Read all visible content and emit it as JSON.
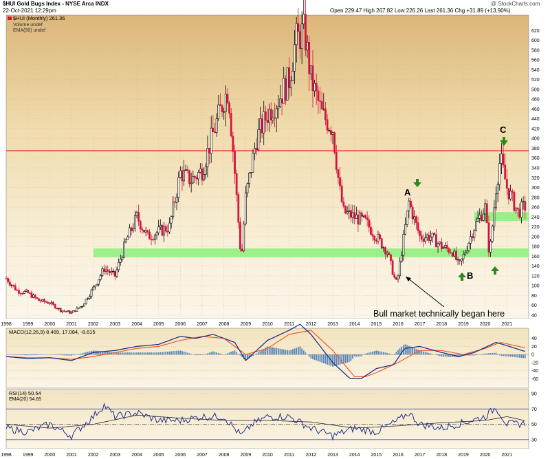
{
  "header": {
    "ticker_title": "$HUI Gold Bugs Index - NYSE Arca INDX",
    "date": "22-Oct-2021 12:29pm",
    "quote": "Open 229.47  High 267.82  Low 226.26  Last 261.36  Chg +31.89 (+13.90%)",
    "watermark": "@ StockCharts.com"
  },
  "legend": {
    "main": "$HUI (Monthly) 261.36",
    "volume": "Volume undef",
    "ema": "EMA(50) undef",
    "macd": "MACD(12,26,9) 8.469, 17.084, -8.615",
    "rsi": "RSI(14) 50.54",
    "rsi_ema": "EMA(20) 54.65"
  },
  "annotations": {
    "a": "A",
    "b": "B",
    "c": "C",
    "note": "Bull market technically began here"
  },
  "colors": {
    "up_bar": "#000000",
    "down_bar": "#d4143c",
    "resistance": "#e53030",
    "support_zone": "#8cf07a",
    "macd_line": "#1f2f8c",
    "signal_line": "#f05a28",
    "histogram": "#5a86b8",
    "arrow": "#2b8a1a"
  },
  "chart_data": [
    {
      "type": "line",
      "title": "$HUI (Monthly)",
      "x": [
        1998.0,
        1998.5,
        1999.0,
        1999.5,
        2000.0,
        2000.5,
        2001.0,
        2001.5,
        2002.0,
        2002.5,
        2003.0,
        2003.5,
        2004.0,
        2004.5,
        2005.0,
        2005.5,
        2006.0,
        2006.5,
        2007.0,
        2007.5,
        2008.0,
        2008.2,
        2008.5,
        2008.8,
        2009.0,
        2009.5,
        2010.0,
        2010.5,
        2011.0,
        2011.3,
        2011.7,
        2012.0,
        2012.5,
        2013.0,
        2013.3,
        2013.5,
        2014.0,
        2014.5,
        2015.0,
        2015.5,
        2015.9,
        2016.0,
        2016.5,
        2017.0,
        2017.5,
        2018.0,
        2018.5,
        2018.8,
        2019.0,
        2019.5,
        2020.0,
        2020.2,
        2020.5,
        2020.7,
        2021.0,
        2021.5,
        2021.8
      ],
      "values": [
        115,
        90,
        85,
        70,
        65,
        50,
        45,
        60,
        95,
        135,
        120,
        190,
        240,
        200,
        210,
        220,
        330,
        315,
        335,
        410,
        480,
        500,
        330,
        150,
        280,
        400,
        450,
        480,
        520,
        600,
        620,
        520,
        450,
        420,
        300,
        250,
        240,
        230,
        200,
        170,
        105,
        120,
        270,
        200,
        200,
        180,
        170,
        140,
        160,
        220,
        260,
        160,
        300,
        360,
        300,
        250,
        261
      ],
      "xlabel": "",
      "ylabel": "",
      "ylim": [
        40,
        640
      ],
      "x_ticks": [
        "1998",
        "1999",
        "2000",
        "2001",
        "2002",
        "2003",
        "2004",
        "2005",
        "2006",
        "2007",
        "2008",
        "2009",
        "2010",
        "2011",
        "2012",
        "2013",
        "2014",
        "2015",
        "2016",
        "2017",
        "2018",
        "2019",
        "2020",
        "2021"
      ],
      "y_ticks": [
        40,
        60,
        80,
        100,
        120,
        140,
        160,
        180,
        200,
        220,
        240,
        260,
        280,
        300,
        320,
        340,
        360,
        380,
        400,
        420,
        440,
        460,
        480,
        500,
        520,
        540,
        560,
        580,
        600,
        620
      ],
      "resistance_level": 375,
      "support_zones": [
        [
          158,
          176
        ],
        [
          232,
          250
        ]
      ]
    },
    {
      "type": "line",
      "title": "MACD(12,26,9)",
      "series": [
        {
          "name": "MACD",
          "x": [
            1998,
            1999,
            2000,
            2001,
            2002,
            2003,
            2004,
            2005,
            2006,
            2006.7,
            2007.5,
            2008.5,
            2009,
            2010,
            2011,
            2011.5,
            2012,
            2013,
            2013.8,
            2014.3,
            2015,
            2015.8,
            2016.3,
            2017,
            2018,
            2018.8,
            2019.5,
            2020.5,
            2021,
            2021.8
          ],
          "values": [
            -5,
            -10,
            -8,
            -15,
            5,
            10,
            20,
            25,
            45,
            40,
            50,
            30,
            -15,
            35,
            60,
            75,
            50,
            -20,
            -60,
            -60,
            -35,
            -25,
            15,
            20,
            5,
            -5,
            5,
            30,
            22,
            8
          ]
        },
        {
          "name": "Signal",
          "x": [
            1998,
            1999,
            2000,
            2001,
            2002,
            2003,
            2004,
            2005,
            2006,
            2007,
            2008,
            2009,
            2010,
            2011,
            2012,
            2013,
            2014,
            2014.5,
            2015,
            2016,
            2017,
            2018,
            2019,
            2020,
            2020.7,
            2021.8
          ],
          "values": [
            -5,
            -8,
            -8,
            -12,
            -5,
            5,
            15,
            20,
            35,
            45,
            40,
            0,
            15,
            50,
            60,
            10,
            -55,
            -55,
            -45,
            -20,
            10,
            10,
            0,
            15,
            30,
            17
          ]
        }
      ],
      "ylim": [
        -80,
        60
      ],
      "y_ticks": [
        -60,
        -40,
        -20,
        0,
        20,
        40
      ]
    },
    {
      "type": "line",
      "title": "RSI(14)",
      "series": [
        {
          "name": "RSI",
          "x": [
            1998,
            1999,
            2000,
            2001,
            2002,
            2002.5,
            2003,
            2004,
            2005,
            2006,
            2007,
            2008,
            2008.8,
            2009.3,
            2010,
            2011,
            2012,
            2013,
            2014,
            2015,
            2016,
            2016.5,
            2017,
            2018,
            2019,
            2020,
            2020.5,
            2021,
            2021.8
          ],
          "values": [
            45,
            40,
            50,
            35,
            60,
            75,
            60,
            65,
            55,
            55,
            60,
            60,
            35,
            50,
            60,
            60,
            45,
            35,
            45,
            40,
            55,
            65,
            50,
            45,
            52,
            60,
            72,
            50,
            51
          ]
        },
        {
          "name": "EMA(20)",
          "x": [
            1998,
            2000,
            2002,
            2004,
            2006,
            2008,
            2010,
            2012,
            2014,
            2016,
            2018,
            2020,
            2021,
            2021.8
          ],
          "values": [
            50,
            45,
            50,
            62,
            58,
            55,
            55,
            53,
            45,
            48,
            52,
            55,
            60,
            55
          ]
        }
      ],
      "ylim": [
        20,
        90
      ],
      "y_ticks": [
        30,
        50,
        70,
        90
      ],
      "overbought": 70,
      "oversold": 30
    }
  ]
}
